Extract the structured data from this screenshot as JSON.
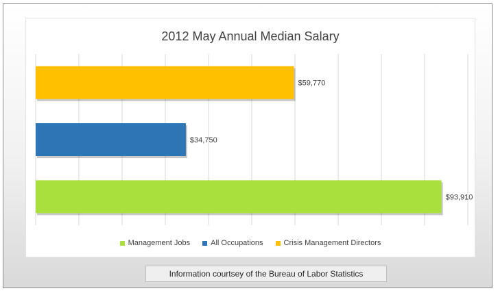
{
  "chart_data": {
    "type": "bar",
    "orientation": "horizontal",
    "title": "2012 May Annual Median Salary",
    "categories": [
      "Crisis Management Directors",
      "All Occupations",
      "Management Jobs"
    ],
    "values": [
      59770,
      34750,
      93910
    ],
    "data_labels": [
      "$59,770",
      "$34,750",
      "$93,910"
    ],
    "colors": [
      "#ffc000",
      "#2e75b6",
      "#a9e03d"
    ],
    "xlim": [
      0,
      100000
    ],
    "grid": true,
    "legend_position": "bottom",
    "legend": [
      {
        "label": "Management Jobs",
        "color": "#a9e03d"
      },
      {
        "label": "All Occupations",
        "color": "#2e75b6"
      },
      {
        "label": "Crisis Management Directors",
        "color": "#ffc000"
      }
    ]
  },
  "footer": {
    "source_note": "Information courtsey of the Bureau of Labor Statistics"
  }
}
